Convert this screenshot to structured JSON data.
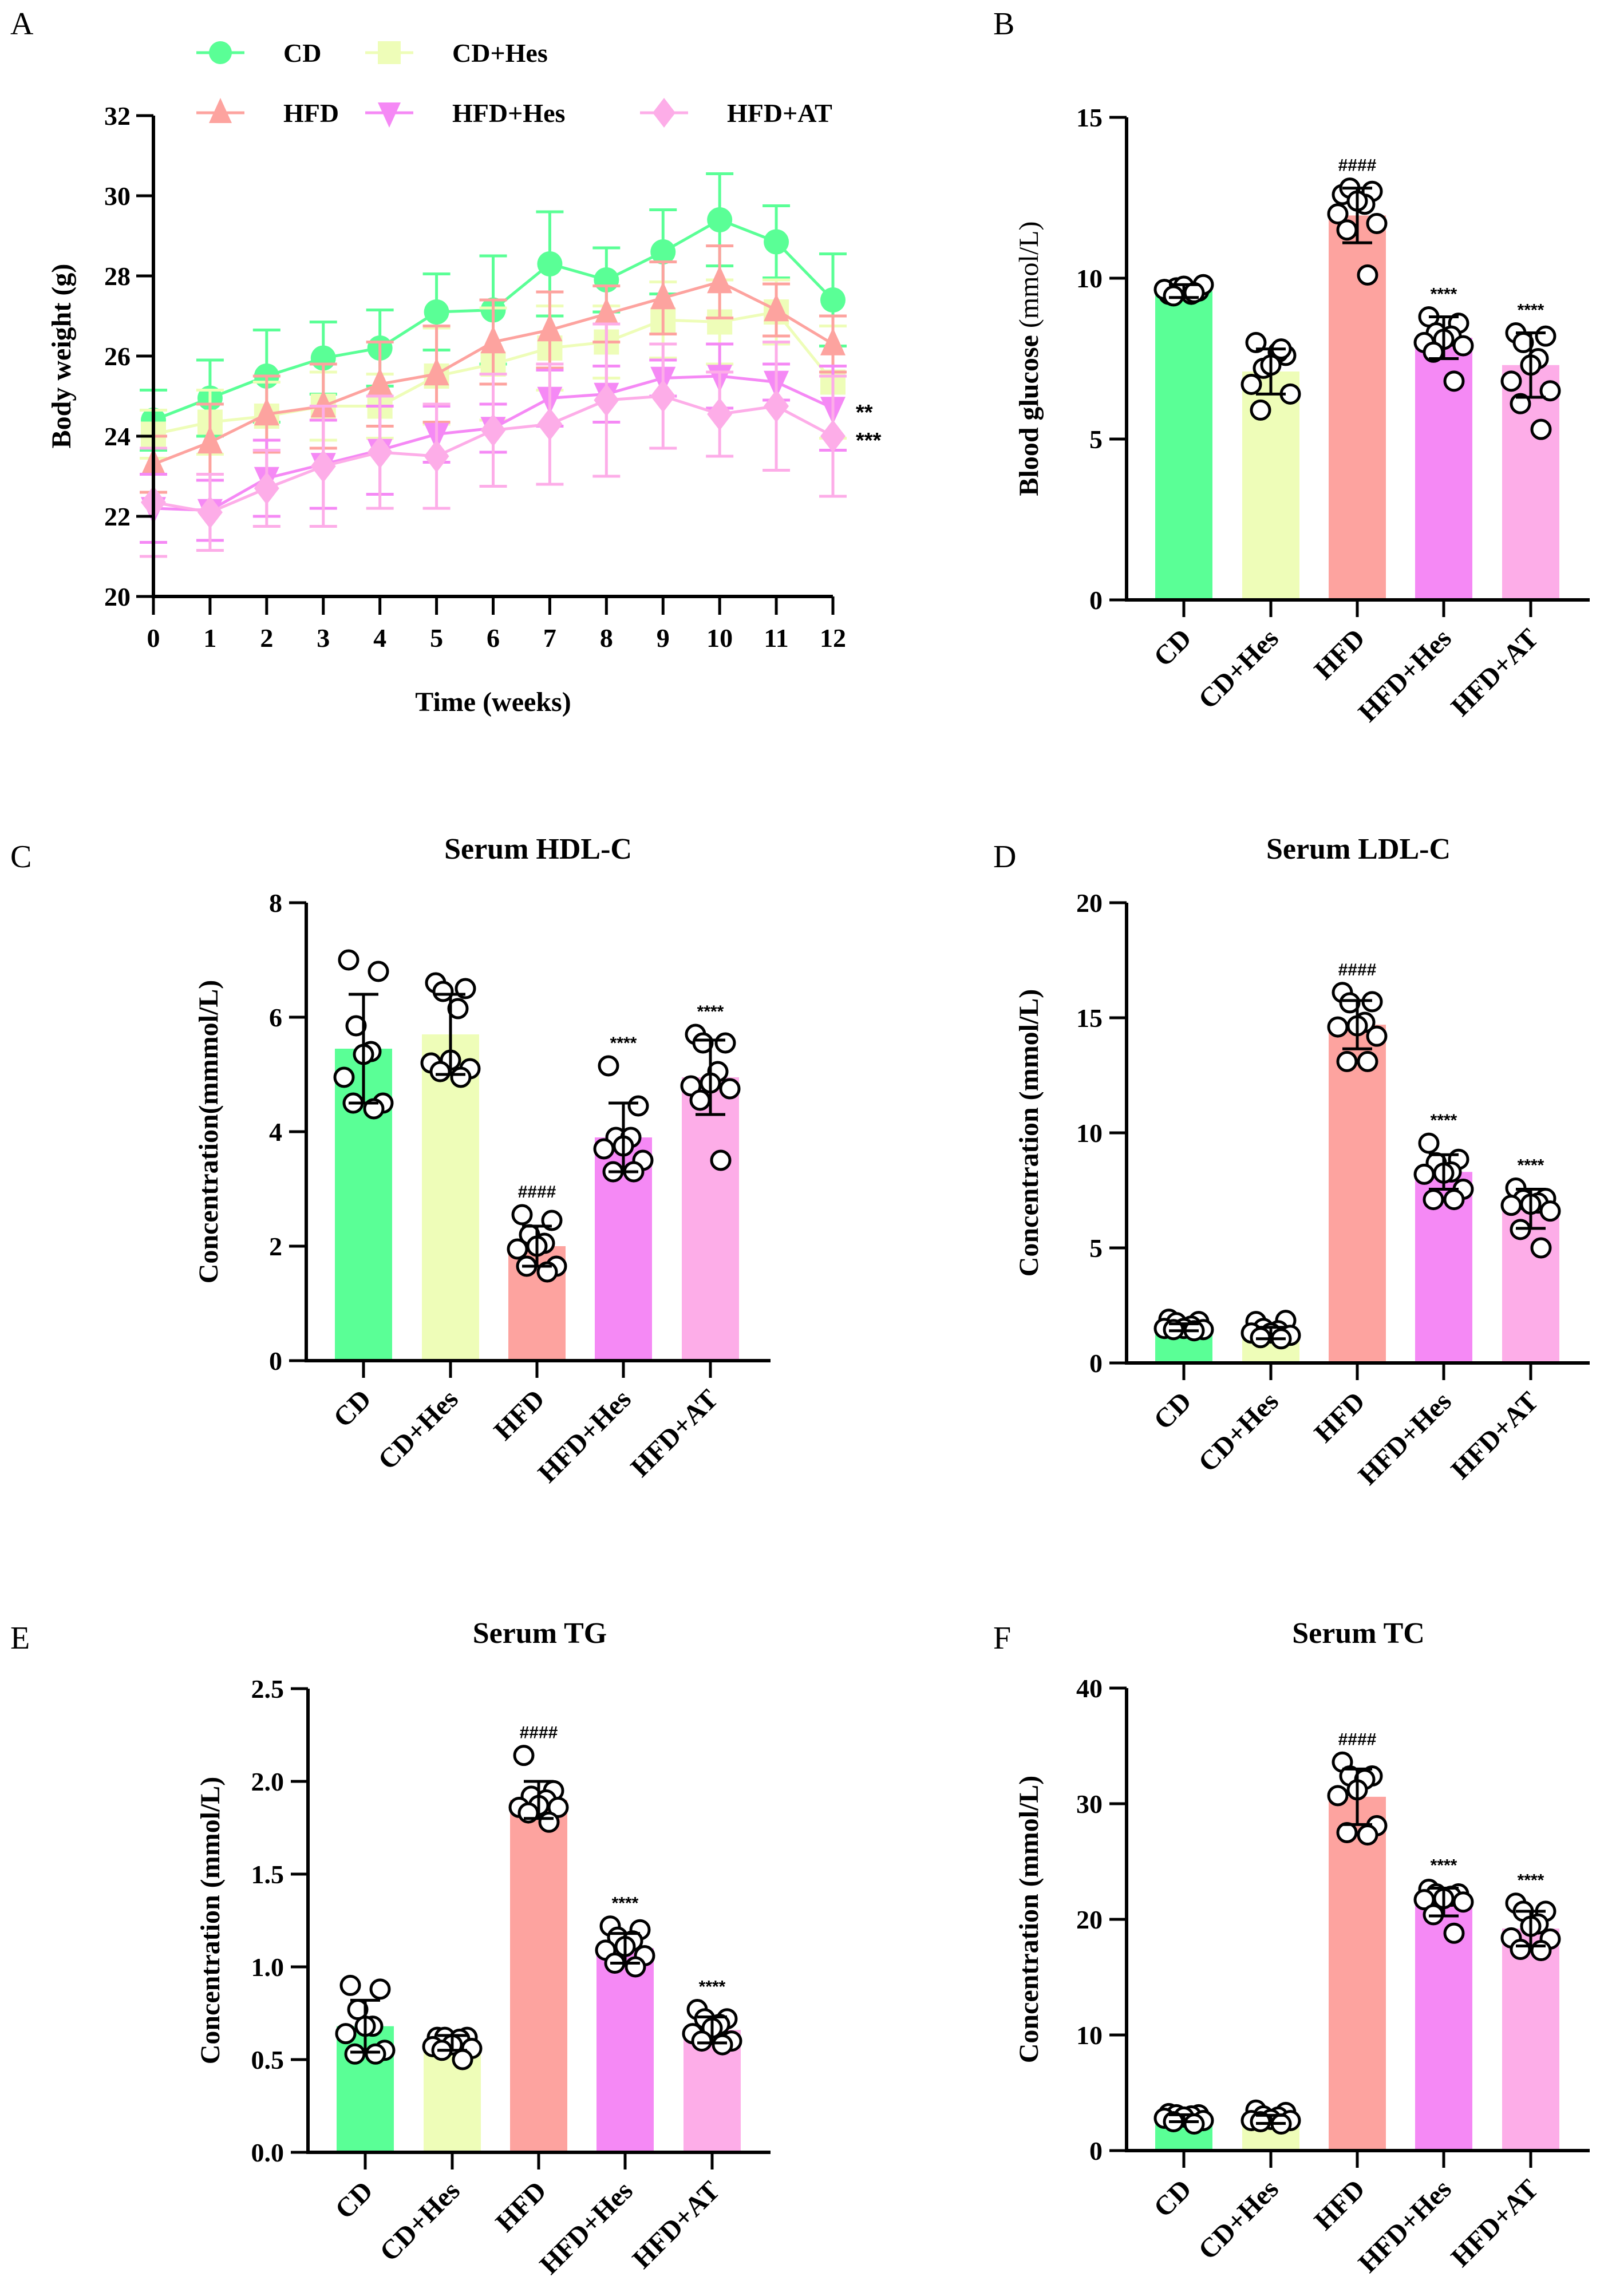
{
  "figure": {
    "groups": [
      "CD",
      "CD+Hes",
      "HFD",
      "HFD+Hes",
      "HFD+AT"
    ],
    "colors": {
      "CD": "#5AFF96",
      "CD+Hes": "#EEFDB8",
      "HFD": "#FDA39F",
      "HFD+Hes": "#F589F5",
      "HFD+AT": "#FDADE8"
    }
  },
  "chart_data": [
    {
      "panel": "A",
      "type": "line",
      "title": "",
      "xlabel": "Time (weeks)",
      "ylabel": "Body weight (g)",
      "x": [
        0,
        1,
        2,
        3,
        4,
        5,
        6,
        7,
        8,
        9,
        10,
        11,
        12
      ],
      "xlim": [
        0,
        12
      ],
      "ylim": [
        20,
        32
      ],
      "yticks": [
        20,
        22,
        24,
        26,
        28,
        30,
        32
      ],
      "legend": "top",
      "series": [
        {
          "name": "CD",
          "marker": "circle",
          "values": [
            24.4,
            24.95,
            25.5,
            25.95,
            26.2,
            27.1,
            27.15,
            28.3,
            27.9,
            28.6,
            29.4,
            28.85,
            27.4
          ],
          "sd": [
            0.75,
            0.95,
            1.15,
            0.9,
            0.95,
            0.95,
            1.35,
            1.3,
            0.8,
            1.05,
            1.15,
            0.9,
            1.15
          ]
        },
        {
          "name": "CD+Hes",
          "marker": "square",
          "values": [
            24.05,
            24.35,
            24.5,
            24.75,
            24.75,
            25.5,
            25.8,
            26.2,
            26.35,
            26.9,
            26.85,
            27.1,
            25.35
          ],
          "sd": [
            0.6,
            0.8,
            0.85,
            0.85,
            0.8,
            1.2,
            1.4,
            1.05,
            0.9,
            0.95,
            1.05,
            0.8,
            1.4
          ]
        },
        {
          "name": "HFD",
          "marker": "triangle-up",
          "values": [
            23.3,
            23.85,
            24.55,
            24.75,
            25.3,
            25.55,
            26.35,
            26.65,
            27.05,
            27.45,
            27.85,
            27.15,
            26.3
          ],
          "sd": [
            0.7,
            0.95,
            0.95,
            1.05,
            1.05,
            1.2,
            1.05,
            0.95,
            0.7,
            0.9,
            0.9,
            0.65,
            0.7
          ]
        },
        {
          "name": "HFD+Hes",
          "marker": "triangle-down",
          "values": [
            22.2,
            22.15,
            22.95,
            23.3,
            23.65,
            24.05,
            24.2,
            24.95,
            25.05,
            25.45,
            25.5,
            25.35,
            24.7
          ],
          "sd": [
            0.85,
            0.75,
            0.95,
            1.1,
            1.1,
            0.7,
            0.6,
            0.7,
            0.7,
            0.45,
            0.8,
            0.45,
            1.05
          ]
        },
        {
          "name": "HFD+AT",
          "marker": "diamond",
          "values": [
            22.35,
            22.1,
            22.7,
            23.25,
            23.6,
            23.5,
            24.15,
            24.3,
            24.9,
            25.0,
            24.55,
            24.75,
            24.0
          ],
          "sd": [
            1.35,
            0.95,
            0.95,
            1.5,
            1.4,
            1.3,
            1.4,
            1.5,
            1.9,
            1.3,
            1.05,
            1.6,
            1.5
          ]
        }
      ],
      "annotations": [
        {
          "series": "HFD+Hes",
          "x": 12,
          "text": "**"
        },
        {
          "series": "HFD+AT",
          "x": 12,
          "text": "***"
        }
      ]
    },
    {
      "panel": "B",
      "type": "bar",
      "title": "",
      "xlabel": "",
      "ylabel": "Blood glucose",
      "ylabel_unit": " (mmol/L)",
      "categories": [
        "CD",
        "CD+Hes",
        "HFD",
        "HFD+Hes",
        "HFD+AT"
      ],
      "values": [
        9.6,
        7.1,
        11.95,
        8.15,
        7.3
      ],
      "sd": [
        0.2,
        0.7,
        0.85,
        0.65,
        1.0
      ],
      "points": [
        [
          9.5,
          9.6,
          9.7,
          9.5,
          9.75,
          9.65,
          9.8,
          9.45,
          9.55
        ],
        [
          8.0,
          7.6,
          7.2,
          7.7,
          7.3,
          6.7,
          6.4,
          5.9,
          7.8
        ],
        [
          12.6,
          12.7,
          12.8,
          12.3,
          12.4,
          12.0,
          11.7,
          11.5,
          10.1
        ],
        [
          8.8,
          8.6,
          8.3,
          8.2,
          8.1,
          8.0,
          7.9,
          7.7,
          6.8
        ],
        [
          8.3,
          8.2,
          8.0,
          7.5,
          7.3,
          6.8,
          6.5,
          6.1,
          5.3
        ]
      ],
      "significance": [
        "",
        "",
        "####",
        "****",
        "****"
      ],
      "ylim": [
        0,
        15
      ],
      "yticks": [
        0,
        5,
        10,
        15
      ]
    },
    {
      "panel": "C",
      "type": "bar",
      "title": "Serum HDL-C",
      "xlabel": "",
      "ylabel": "Concentration(mmmol/L)",
      "categories": [
        "CD",
        "CD+Hes",
        "HFD",
        "HFD+Hes",
        "HFD+AT"
      ],
      "values": [
        5.45,
        5.7,
        2.0,
        3.9,
        4.95
      ],
      "sd": [
        0.95,
        0.7,
        0.35,
        0.6,
        0.65
      ],
      "points": [
        [
          7.0,
          6.8,
          5.85,
          5.4,
          5.35,
          4.95,
          4.5,
          4.5,
          4.4
        ],
        [
          6.6,
          6.5,
          6.45,
          6.15,
          5.25,
          5.2,
          5.1,
          5.05,
          4.95
        ],
        [
          2.55,
          2.45,
          2.2,
          2.05,
          2.0,
          1.95,
          1.65,
          1.65,
          1.55
        ],
        [
          5.15,
          4.45,
          3.9,
          3.9,
          3.75,
          3.7,
          3.5,
          3.3,
          3.3
        ],
        [
          5.7,
          5.55,
          5.55,
          5.05,
          4.85,
          4.8,
          4.75,
          4.55,
          3.5
        ]
      ],
      "significance": [
        "",
        "",
        "####",
        "****",
        "****"
      ],
      "ylim": [
        0,
        8
      ],
      "yticks": [
        0,
        2,
        4,
        6,
        8
      ]
    },
    {
      "panel": "D",
      "type": "bar",
      "title": "Serum LDL-C",
      "xlabel": "",
      "ylabel": "Concentration (mmol/L)",
      "categories": [
        "CD",
        "CD+Hes",
        "HFD",
        "HFD+Hes",
        "HFD+AT"
      ],
      "values": [
        1.55,
        1.3,
        14.7,
        8.3,
        6.7
      ],
      "sd": [
        0.15,
        0.25,
        1.05,
        0.75,
        0.85
      ],
      "points": [
        [
          1.9,
          1.8,
          1.75,
          1.6,
          1.5,
          1.5,
          1.45,
          1.45,
          1.4
        ],
        [
          1.8,
          1.85,
          1.5,
          1.4,
          1.3,
          1.3,
          1.2,
          1.1,
          1.05
        ],
        [
          16.1,
          15.7,
          15.65,
          14.8,
          14.65,
          14.6,
          14.2,
          13.1,
          13.1
        ],
        [
          9.55,
          8.85,
          8.7,
          8.3,
          8.25,
          8.2,
          7.55,
          7.1,
          7.1
        ],
        [
          7.6,
          7.15,
          7.1,
          6.95,
          6.9,
          6.85,
          6.6,
          5.8,
          5.0
        ]
      ],
      "significance": [
        "",
        "",
        "####",
        "****",
        "****"
      ],
      "ylim": [
        0,
        20
      ],
      "yticks": [
        0,
        5,
        10,
        15,
        20
      ]
    },
    {
      "panel": "E",
      "type": "bar",
      "title": "Serum TG",
      "xlabel": "",
      "ylabel": "Concentration (mmol/L)",
      "categories": [
        "CD",
        "CD+Hes",
        "HFD",
        "HFD+Hes",
        "HFD+AT"
      ],
      "values": [
        0.68,
        0.59,
        1.9,
        1.1,
        0.66
      ],
      "sd": [
        0.14,
        0.04,
        0.1,
        0.08,
        0.07
      ],
      "points": [
        [
          0.9,
          0.88,
          0.77,
          0.68,
          0.68,
          0.64,
          0.55,
          0.53,
          0.53
        ],
        [
          0.62,
          0.62,
          0.62,
          0.61,
          0.58,
          0.57,
          0.56,
          0.55,
          0.5
        ],
        [
          2.14,
          1.95,
          1.92,
          1.9,
          1.87,
          1.86,
          1.86,
          1.83,
          1.78
        ],
        [
          1.22,
          1.2,
          1.16,
          1.14,
          1.11,
          1.09,
          1.06,
          1.02,
          1.0
        ],
        [
          0.77,
          0.72,
          0.72,
          0.69,
          0.67,
          0.64,
          0.6,
          0.6,
          0.58
        ]
      ],
      "significance": [
        "",
        "",
        "####",
        "****",
        "****"
      ],
      "ylim": [
        0,
        2.5
      ],
      "yticks": [
        0.0,
        0.5,
        1.0,
        1.5,
        2.0,
        2.5
      ]
    },
    {
      "panel": "F",
      "type": "bar",
      "title": "Serum TC",
      "xlabel": "",
      "ylabel": "Concentration (mmol/L)",
      "categories": [
        "CD",
        "CD+Hes",
        "HFD",
        "HFD+Hes",
        "HFD+AT"
      ],
      "values": [
        2.8,
        2.7,
        30.6,
        21.5,
        19.2
      ],
      "sd": [
        0.3,
        0.35,
        2.4,
        1.2,
        1.5
      ],
      "points": [
        [
          3.2,
          3.1,
          3.1,
          3.0,
          2.9,
          2.8,
          2.6,
          2.5,
          2.3
        ],
        [
          3.5,
          3.3,
          3.0,
          2.9,
          2.7,
          2.6,
          2.6,
          2.5,
          2.3
        ],
        [
          33.6,
          32.4,
          32.4,
          32.1,
          31.2,
          30.7,
          28.1,
          27.5,
          27.3
        ],
        [
          22.6,
          22.2,
          22.2,
          22.0,
          21.8,
          21.7,
          21.5,
          20.4,
          18.8
        ],
        [
          21.4,
          20.7,
          20.7,
          19.6,
          19.4,
          18.4,
          18.3,
          17.4,
          17.3
        ]
      ],
      "significance": [
        "",
        "",
        "####",
        "****",
        "****"
      ],
      "ylim": [
        0,
        40
      ],
      "yticks": [
        0,
        10,
        20,
        30,
        40
      ]
    }
  ]
}
